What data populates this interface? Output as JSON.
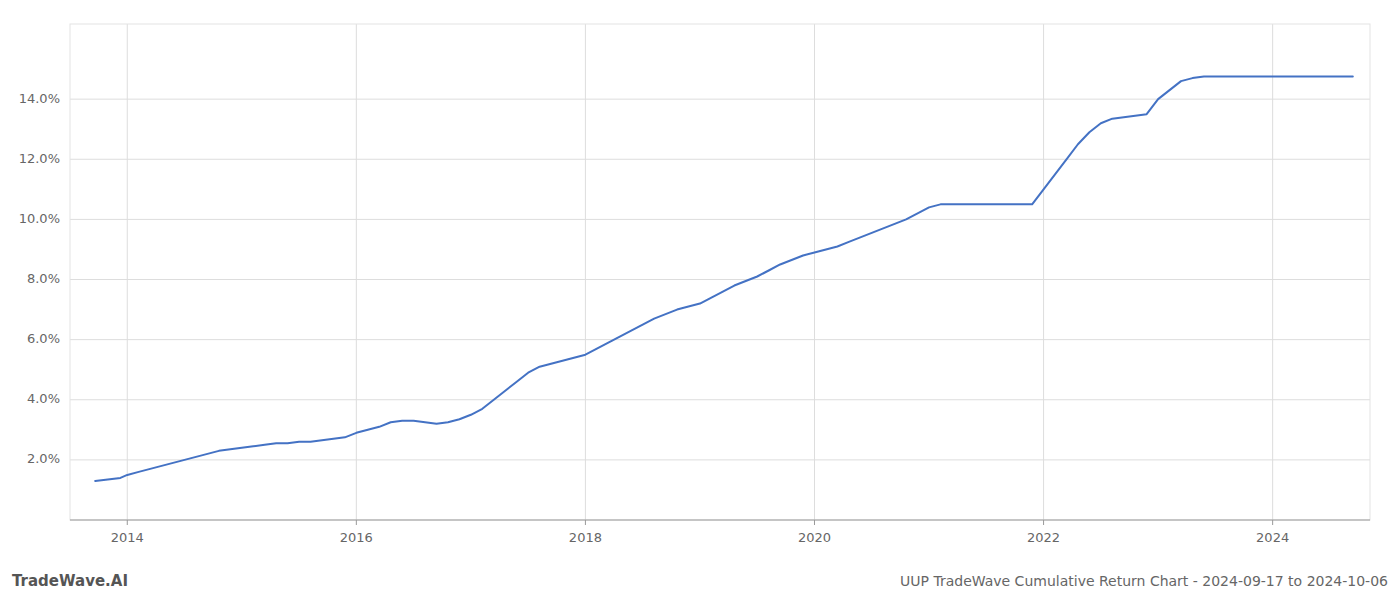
{
  "chart_data": {
    "type": "line",
    "title": "UUP TradeWave Cumulative Return Chart - 2024-09-17 to 2024-10-06",
    "annotations": [
      "TradeWave.AI"
    ],
    "color": "#4472c4",
    "grid": true,
    "x": [
      2013.72,
      2013.83,
      2013.94,
      2014.0,
      2014.1,
      2014.2,
      2014.3,
      2014.4,
      2014.5,
      2014.6,
      2014.7,
      2014.8,
      2014.9,
      2015.0,
      2015.1,
      2015.2,
      2015.3,
      2015.4,
      2015.5,
      2015.6,
      2015.7,
      2015.8,
      2015.9,
      2016.0,
      2016.1,
      2016.2,
      2016.3,
      2016.4,
      2016.5,
      2016.6,
      2016.7,
      2016.8,
      2016.9,
      2017.0,
      2017.1,
      2017.2,
      2017.3,
      2017.4,
      2017.5,
      2017.6,
      2017.7,
      2017.8,
      2017.9,
      2018.0,
      2018.1,
      2018.2,
      2018.3,
      2018.4,
      2018.5,
      2018.6,
      2018.7,
      2018.8,
      2018.9,
      2019.0,
      2019.1,
      2019.2,
      2019.3,
      2019.4,
      2019.5,
      2019.6,
      2019.7,
      2019.8,
      2019.9,
      2020.0,
      2020.1,
      2020.2,
      2020.3,
      2020.4,
      2020.5,
      2020.6,
      2020.7,
      2020.8,
      2020.9,
      2021.0,
      2021.1,
      2021.2,
      2021.3,
      2021.4,
      2021.5,
      2021.6,
      2021.7,
      2021.8,
      2021.9,
      2022.0,
      2022.1,
      2022.2,
      2022.3,
      2022.4,
      2022.5,
      2022.6,
      2022.7,
      2022.8,
      2022.9,
      2023.0,
      2023.1,
      2023.2,
      2023.3,
      2023.4,
      2023.5,
      2023.6,
      2023.7,
      2023.8,
      2023.9,
      2024.0,
      2024.1,
      2024.2,
      2024.3,
      2024.4,
      2024.5,
      2024.6,
      2024.7
    ],
    "values": [
      1.3,
      1.35,
      1.4,
      1.5,
      1.6,
      1.7,
      1.8,
      1.9,
      2.0,
      2.1,
      2.2,
      2.3,
      2.35,
      2.4,
      2.45,
      2.5,
      2.55,
      2.55,
      2.6,
      2.6,
      2.65,
      2.7,
      2.75,
      2.9,
      3.0,
      3.1,
      3.25,
      3.3,
      3.3,
      3.25,
      3.2,
      3.25,
      3.35,
      3.5,
      3.7,
      4.0,
      4.3,
      4.6,
      4.9,
      5.1,
      5.2,
      5.3,
      5.4,
      5.5,
      5.7,
      5.9,
      6.1,
      6.3,
      6.5,
      6.7,
      6.85,
      7.0,
      7.1,
      7.2,
      7.4,
      7.6,
      7.8,
      7.95,
      8.1,
      8.3,
      8.5,
      8.65,
      8.8,
      8.9,
      9.0,
      9.1,
      9.25,
      9.4,
      9.55,
      9.7,
      9.85,
      10.0,
      10.2,
      10.4,
      10.5,
      10.5,
      10.5,
      10.5,
      10.5,
      10.5,
      10.5,
      10.5,
      10.5,
      11.0,
      11.5,
      12.0,
      12.5,
      12.9,
      13.2,
      13.35,
      13.4,
      13.45,
      13.5,
      14.0,
      14.3,
      14.6,
      14.7,
      14.75,
      14.75,
      14.75,
      14.75,
      14.75,
      14.75,
      14.75,
      14.75,
      14.75,
      14.75,
      14.75,
      14.75,
      14.75,
      14.75
    ],
    "xlim": [
      2013.5,
      2024.85
    ],
    "xticks": [
      2014,
      2016,
      2018,
      2020,
      2022,
      2024
    ],
    "ylim": [
      0,
      16.5
    ],
    "yticks": [
      {
        "value": 2.0,
        "label": "2.0%"
      },
      {
        "value": 4.0,
        "label": "4.0%"
      },
      {
        "value": 6.0,
        "label": "6.0%"
      },
      {
        "value": 8.0,
        "label": "8.0%"
      },
      {
        "value": 10.0,
        "label": "10.0%"
      },
      {
        "value": 12.0,
        "label": "12.0%"
      },
      {
        "value": 14.0,
        "label": "14.0%"
      }
    ]
  }
}
